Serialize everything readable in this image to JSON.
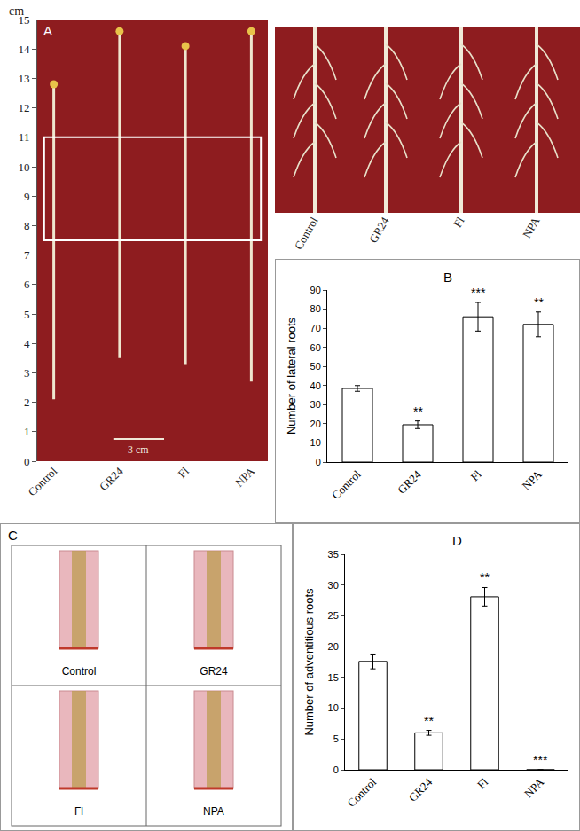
{
  "panel_A": {
    "label": "A",
    "unit": "cm",
    "ylim": [
      0,
      15
    ],
    "yticks": [
      0,
      1,
      2,
      3,
      4,
      5,
      6,
      7,
      8,
      9,
      10,
      11,
      12,
      13,
      14,
      15
    ],
    "samples": [
      "Control",
      "GR24",
      "Fl",
      "NPA"
    ],
    "shoot_top_cm": [
      12.8,
      14.6,
      14.1,
      14.6
    ],
    "root_tip_cm": [
      2.1,
      3.5,
      3.3,
      2.7
    ],
    "zoom_cm": [
      7.5,
      11
    ],
    "scale_bar": "3 cm",
    "inset_samples": [
      "Control",
      "GR24",
      "Fl",
      "NPA"
    ]
  },
  "panel_C": {
    "label": "C",
    "samples": [
      "Control",
      "GR24",
      "Fl",
      "NPA"
    ]
  },
  "chart_data": [
    {
      "label": "B",
      "type": "bar",
      "categories": [
        "Control",
        "GR24",
        "Fl",
        "NPA"
      ],
      "values": [
        38.5,
        19.5,
        76,
        72
      ],
      "errors": [
        1.5,
        2,
        7.5,
        6.5
      ],
      "annotations": [
        {
          "category": "GR24",
          "text": "**"
        },
        {
          "category": "Fl",
          "text": "***"
        },
        {
          "category": "NPA",
          "text": "**"
        }
      ],
      "y_label": "Number of lateral roots",
      "ylim": [
        0,
        90
      ],
      "yticks": [
        0,
        10,
        20,
        30,
        40,
        50,
        60,
        70,
        80,
        90
      ],
      "color": "#ffffff",
      "grid": false
    },
    {
      "label": "D",
      "type": "bar",
      "categories": [
        "Control",
        "GR24",
        "Fl",
        "NPA"
      ],
      "values": [
        17.6,
        6,
        28.1,
        0
      ],
      "errors": [
        1.2,
        0.4,
        1.5,
        0
      ],
      "annotations": [
        {
          "category": "GR24",
          "text": "**"
        },
        {
          "category": "Fl",
          "text": "**"
        },
        {
          "category": "NPA",
          "text": "***"
        }
      ],
      "y_label": "Number of adventitious roots",
      "ylim": [
        0,
        35
      ],
      "yticks": [
        0,
        5,
        10,
        15,
        20,
        25,
        30,
        35
      ],
      "color": "#ffffff",
      "grid": false
    }
  ]
}
